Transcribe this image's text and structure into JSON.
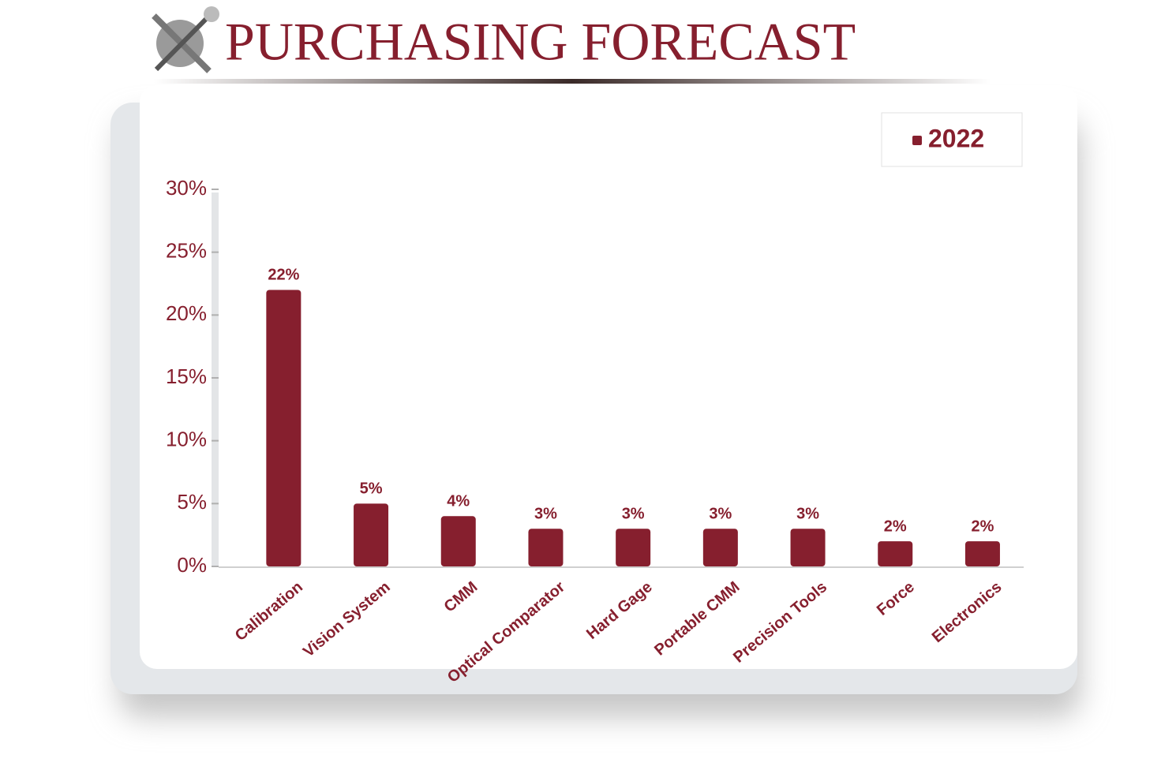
{
  "chart_data": {
    "type": "bar",
    "title": "PURCHASING FORECAST",
    "categories": [
      "Calibration",
      "Vision System",
      "CMM",
      "Optical Comparator",
      "Hard Gage",
      "Portable CMM",
      "Precision Tools",
      "Force",
      "Electronics"
    ],
    "series": [
      {
        "name": "2022",
        "color": "#861f2e",
        "values": [
          22,
          5,
          4,
          3,
          3,
          3,
          3,
          2,
          2
        ],
        "value_labels": [
          "22%",
          "5%",
          "4%",
          "3%",
          "3%",
          "3%",
          "3%",
          "2%",
          "2%"
        ]
      }
    ],
    "ylim": [
      0,
      30
    ],
    "yticks": [
      {
        "value": 0,
        "label": "0%"
      },
      {
        "value": 5,
        "label": "5%"
      },
      {
        "value": 10,
        "label": "10%"
      },
      {
        "value": 15,
        "label": "15%"
      },
      {
        "value": 20,
        "label": "20%"
      },
      {
        "value": 25,
        "label": "25%"
      },
      {
        "value": 30,
        "label": "30%"
      }
    ],
    "legend": "top-right"
  }
}
